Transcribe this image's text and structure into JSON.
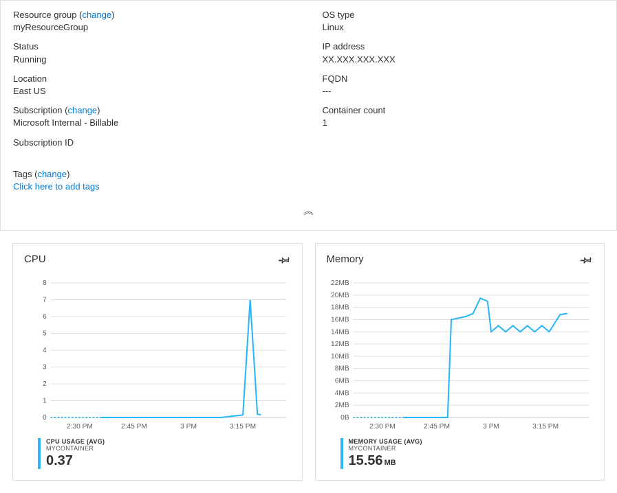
{
  "colors": {
    "link": "#0078d4",
    "text": "#323130",
    "border": "#e1dfdd",
    "series": "#29b6f6",
    "grid": "#e1dfdd"
  },
  "properties": {
    "left": [
      {
        "label": "Resource group",
        "change": "change",
        "value": "myResourceGroup",
        "value_is_link": true
      },
      {
        "label": "Status",
        "value": "Running"
      },
      {
        "label": "Location",
        "value": "East US"
      },
      {
        "label": "Subscription",
        "change": "change",
        "value": "Microsoft Internal - Billable",
        "value_is_link": true
      },
      {
        "label": "Subscription ID",
        "value": ""
      }
    ],
    "right": [
      {
        "label": "OS type",
        "value": "Linux"
      },
      {
        "label": "IP address",
        "value": "XX.XXX.XXX.XXX"
      },
      {
        "label": "FQDN",
        "value": "---"
      },
      {
        "label": "Container count",
        "value": "1"
      }
    ],
    "tags": {
      "label": "Tags",
      "change": "change",
      "action": "Click here to add tags"
    }
  },
  "collapse_glyph": "︽",
  "charts": {
    "cpu": {
      "title": "CPU",
      "type": "line",
      "yticks": [
        0,
        1,
        2,
        3,
        4,
        5,
        6,
        7,
        8
      ],
      "ylim": [
        0,
        8
      ],
      "xticks": [
        "2:30 PM",
        "2:45 PM",
        "3 PM",
        "3:15 PM"
      ],
      "xlim": [
        0,
        65
      ],
      "xtick_positions": [
        8,
        23,
        38,
        53
      ],
      "dotted_segment": {
        "x_start": 0,
        "x_end": 14,
        "y": 0
      },
      "points": [
        [
          14,
          0
        ],
        [
          47,
          0
        ],
        [
          51,
          0.1
        ],
        [
          53,
          0.15
        ],
        [
          55,
          7
        ],
        [
          57,
          0.2
        ],
        [
          58,
          0.15
        ]
      ],
      "legend": {
        "l1": "CPU USAGE (AVG)",
        "l2": "MYCONTAINER",
        "value": "0.37",
        "unit": ""
      },
      "line_color": "#29b6f6",
      "grid_color": "#e1dfdd",
      "background": "#ffffff",
      "tick_fontsize": 10
    },
    "memory": {
      "title": "Memory",
      "type": "line",
      "yticks": [
        "0B",
        "2MB",
        "4MB",
        "6MB",
        "8MB",
        "10MB",
        "12MB",
        "14MB",
        "16MB",
        "18MB",
        "20MB",
        "22MB"
      ],
      "ylim": [
        0,
        22
      ],
      "xticks": [
        "2:30 PM",
        "2:45 PM",
        "3 PM",
        "3:15 PM"
      ],
      "xlim": [
        0,
        65
      ],
      "xtick_positions": [
        8,
        23,
        38,
        53
      ],
      "dotted_segment": {
        "x_start": 0,
        "x_end": 14,
        "y": 0
      },
      "points": [
        [
          14,
          0
        ],
        [
          26,
          0
        ],
        [
          27,
          16
        ],
        [
          31,
          16.5
        ],
        [
          33,
          17
        ],
        [
          35,
          19.5
        ],
        [
          37,
          19
        ],
        [
          38,
          14
        ],
        [
          40,
          15
        ],
        [
          42,
          14
        ],
        [
          44,
          15
        ],
        [
          46,
          14
        ],
        [
          48,
          15
        ],
        [
          50,
          14
        ],
        [
          52,
          15
        ],
        [
          54,
          14
        ],
        [
          57,
          16.8
        ],
        [
          59,
          17
        ]
      ],
      "legend": {
        "l1": "MEMORY USAGE (AVG)",
        "l2": "MYCONTAINER",
        "value": "15.56",
        "unit": "MB"
      },
      "line_color": "#29b6f6",
      "grid_color": "#e1dfdd",
      "background": "#ffffff",
      "tick_fontsize": 10
    }
  }
}
